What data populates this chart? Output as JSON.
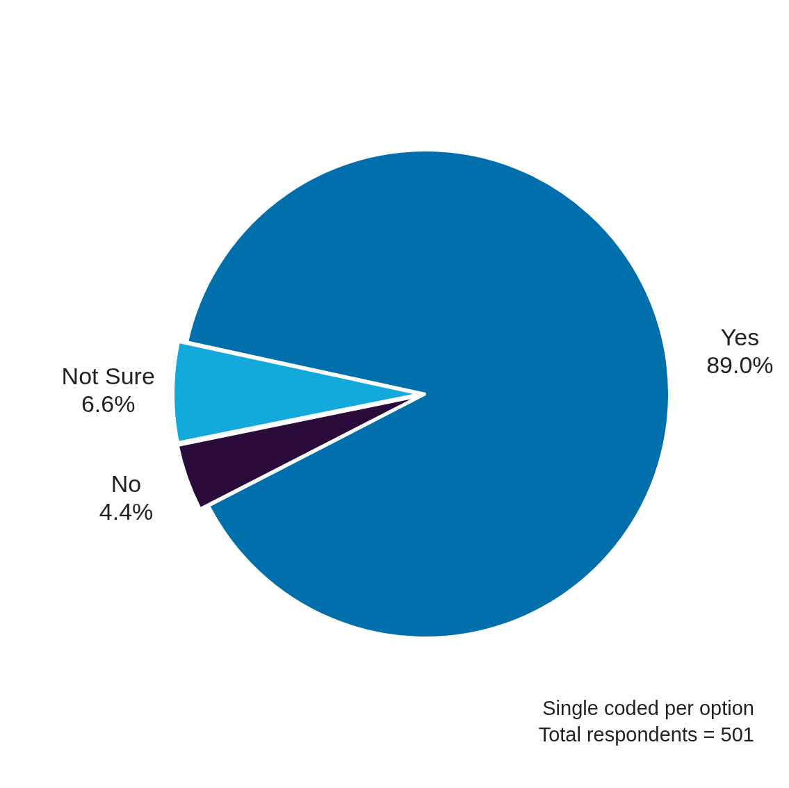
{
  "chart_data": {
    "type": "pie",
    "categories": [
      "Yes",
      "No",
      "Not Sure"
    ],
    "values": [
      89.0,
      4.4,
      6.6
    ],
    "value_labels": [
      "89.0%",
      "4.4%",
      "6.6%"
    ],
    "colors": [
      "#006fac",
      "#2b0b3a",
      "#14a9db"
    ],
    "annotations": [
      "Single coded per option",
      "Total respondents = 501"
    ],
    "legend": false
  }
}
